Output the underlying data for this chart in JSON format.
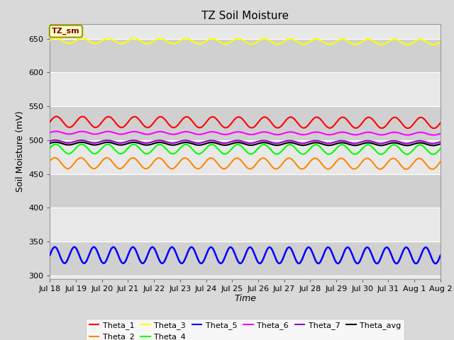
{
  "title": "TZ Soil Moisture",
  "xlabel": "Time",
  "ylabel": "Soil Moisture (mV)",
  "ylim": [
    295,
    672
  ],
  "yticks": [
    300,
    350,
    400,
    450,
    500,
    550,
    600,
    650
  ],
  "fig_facecolor": "#d9d9d9",
  "plot_facecolor": "#d9d9d9",
  "annotation_label": "TZ_sm",
  "annotation_color": "#800000",
  "annotation_bg": "#ffffcc",
  "annotation_edge": "#999900",
  "series": [
    {
      "name": "Theta_1",
      "color": "#ff0000",
      "mean": 527,
      "amp": 8,
      "freq_days": 1.0,
      "phase": 0.0,
      "trend": -1.5,
      "linewidth": 1.5
    },
    {
      "name": "Theta_2",
      "color": "#ff8800",
      "mean": 466,
      "amp": 8,
      "freq_days": 1.0,
      "phase": 0.4,
      "trend": -1.0,
      "linewidth": 1.5
    },
    {
      "name": "Theta_3",
      "color": "#ffff00",
      "mean": 647,
      "amp": 4,
      "freq_days": 1.0,
      "phase": 0.1,
      "trend": -2.0,
      "linewidth": 1.5
    },
    {
      "name": "Theta_4",
      "color": "#00ff00",
      "mean": 487,
      "amp": 7,
      "freq_days": 1.0,
      "phase": 0.2,
      "trend": -1.0,
      "linewidth": 1.5
    },
    {
      "name": "Theta_5",
      "color": "#0000ff",
      "mean": 330,
      "amp": 12,
      "freq_days": 0.75,
      "phase": 0.0,
      "trend": -0.5,
      "linewidth": 1.8
    },
    {
      "name": "Theta_6",
      "color": "#ff00ff",
      "mean": 511,
      "amp": 2,
      "freq_days": 1.0,
      "phase": 0.1,
      "trend": -1.5,
      "linewidth": 1.5
    },
    {
      "name": "Theta_7",
      "color": "#9900cc",
      "mean": 498,
      "amp": 2,
      "freq_days": 1.0,
      "phase": 0.3,
      "trend": -1.0,
      "linewidth": 1.5
    },
    {
      "name": "Theta_avg",
      "color": "#000000",
      "mean": 495,
      "amp": 2,
      "freq_days": 1.0,
      "phase": 0.2,
      "trend": -1.0,
      "linewidth": 1.5
    }
  ],
  "total_days": 15.0,
  "num_points": 600,
  "x_tick_labels": [
    "Jul 18",
    "Jul 19",
    "Jul 20",
    "Jul 21",
    "Jul 22",
    "Jul 23",
    "Jul 24",
    "Jul 25",
    "Jul 26",
    "Jul 27",
    "Jul 28",
    "Jul 29",
    "Jul 30",
    "Jul 31",
    "Aug 1",
    "Aug 2"
  ],
  "band_colors": [
    "#e8e8e8",
    "#d0d0d0"
  ],
  "band_yticks": [
    300,
    350,
    400,
    450,
    500,
    550,
    600,
    650
  ]
}
